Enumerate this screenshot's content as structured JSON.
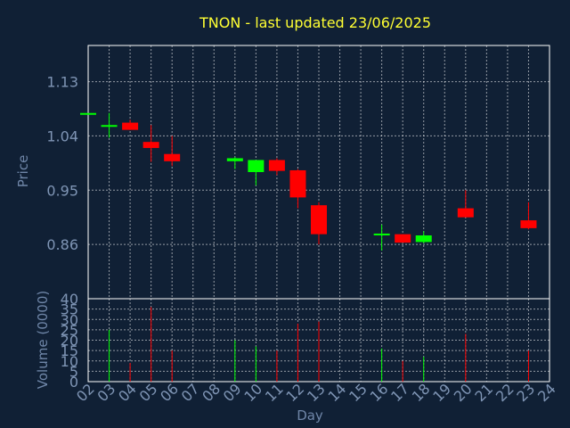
{
  "chart_data": {
    "type": "candlestick",
    "title": "TNON - last updated 23/06/2025",
    "xlabel": "Day",
    "price_ylabel": "Price",
    "volume_ylabel": "Volume (0000)",
    "x_ticks": [
      "02",
      "03",
      "04",
      "05",
      "06",
      "07",
      "08",
      "09",
      "10",
      "11",
      "12",
      "13",
      "14",
      "15",
      "16",
      "17",
      "18",
      "19",
      "20",
      "21",
      "22",
      "23",
      "24"
    ],
    "price_ticks": [
      0.86,
      0.95,
      1.04,
      1.13
    ],
    "price_ylim": [
      0.77,
      1.19
    ],
    "volume_ticks": [
      0,
      5,
      10,
      15,
      20,
      25,
      30,
      35,
      40
    ],
    "volume_ylim": [
      0,
      40
    ],
    "up_color": "#00ff00",
    "down_color": "#ff0000",
    "grid": true,
    "candles": [
      {
        "day": "02",
        "open": 1.078,
        "high": 1.078,
        "low": 1.078,
        "close": 1.078,
        "volume": 0
      },
      {
        "day": "03",
        "open": 1.058,
        "high": 1.078,
        "low": 1.037,
        "close": 1.058,
        "volume": 25
      },
      {
        "day": "04",
        "open": 1.062,
        "high": 1.067,
        "low": 1.05,
        "close": 1.05,
        "volume": 9
      },
      {
        "day": "05",
        "open": 1.03,
        "high": 1.058,
        "low": 0.997,
        "close": 1.02,
        "volume": 36
      },
      {
        "day": "06",
        "open": 1.01,
        "high": 1.04,
        "low": 0.99,
        "close": 0.998,
        "volume": 15
      },
      {
        "day": "09",
        "open": 0.998,
        "high": 1.005,
        "low": 0.985,
        "close": 1.003,
        "volume": 20
      },
      {
        "day": "10",
        "open": 0.98,
        "high": 1.0,
        "low": 0.958,
        "close": 1.0,
        "volume": 17
      },
      {
        "day": "11",
        "open": 1.0,
        "high": 1.003,
        "low": 0.975,
        "close": 0.982,
        "volume": 15
      },
      {
        "day": "12",
        "open": 0.983,
        "high": 0.985,
        "low": 0.92,
        "close": 0.938,
        "volume": 28
      },
      {
        "day": "13",
        "open": 0.925,
        "high": 0.93,
        "low": 0.86,
        "close": 0.877,
        "volume": 29
      },
      {
        "day": "16",
        "open": 0.877,
        "high": 0.893,
        "low": 0.85,
        "close": 0.878,
        "volume": 16
      },
      {
        "day": "17",
        "open": 0.877,
        "high": 0.877,
        "low": 0.863,
        "close": 0.863,
        "volume": 10
      },
      {
        "day": "18",
        "open": 0.864,
        "high": 0.882,
        "low": 0.862,
        "close": 0.875,
        "volume": 12
      },
      {
        "day": "20",
        "open": 0.92,
        "high": 0.95,
        "low": 0.905,
        "close": 0.905,
        "volume": 23
      },
      {
        "day": "23",
        "open": 0.9,
        "high": 0.93,
        "low": 0.885,
        "close": 0.887,
        "volume": 15
      }
    ]
  }
}
